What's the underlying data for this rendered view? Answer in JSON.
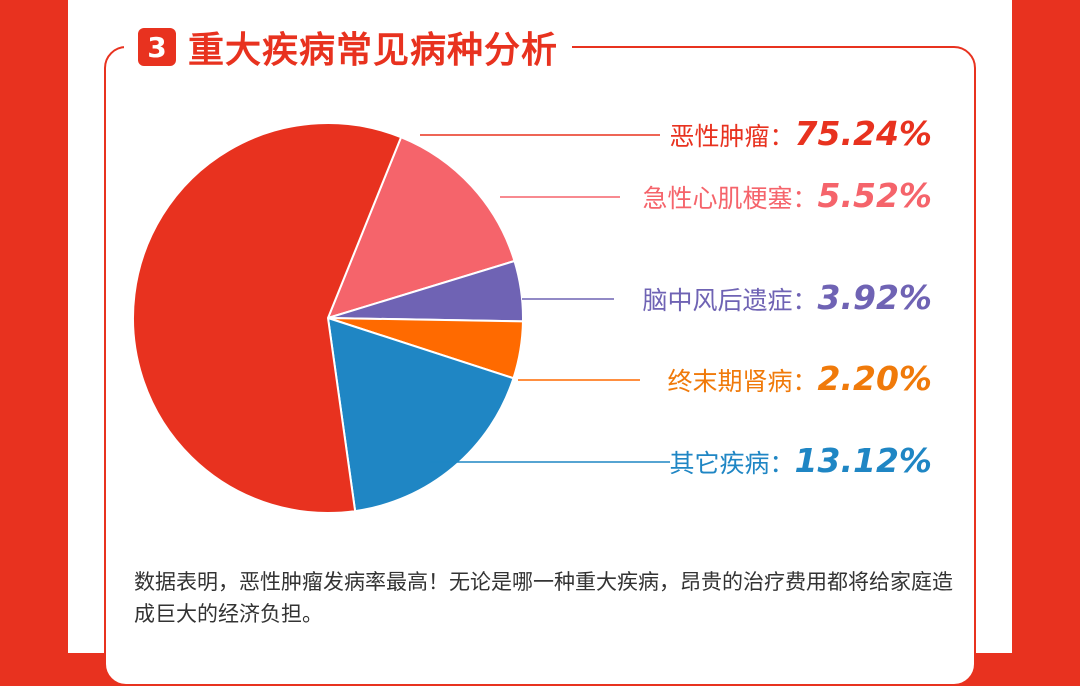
{
  "header": {
    "number": "3",
    "title": "重大疾病常见病种分析"
  },
  "chart_data": {
    "type": "pie",
    "slices": [
      {
        "label": "恶性肿瘤",
        "value": 75.24,
        "display": "75.24%",
        "color": "#e8321f",
        "text_color": "#e8321f"
      },
      {
        "label": "急性心肌梗塞",
        "value": 5.52,
        "display": "5.52%",
        "color": "#f5646b",
        "text_color": "#f5646b"
      },
      {
        "label": "脑中风后遗症",
        "value": 3.92,
        "display": "3.92%",
        "color": "#6f63b4",
        "text_color": "#6f63b4"
      },
      {
        "label": "终末期肾病",
        "value": 2.2,
        "display": "2.20%",
        "color": "#ff6a00",
        "text_color": "#f07a0a"
      },
      {
        "label": "其它疾病",
        "value": 13.12,
        "display": "13.12%",
        "color": "#1f86c4",
        "text_color": "#1f86c4"
      }
    ],
    "label_colon": "："
  },
  "footer": {
    "text": "数据表明，恶性肿瘤发病率最高！无论是哪一种重大疾病，昂贵的治疗费用都将给家庭造成巨大的经济负担。"
  }
}
